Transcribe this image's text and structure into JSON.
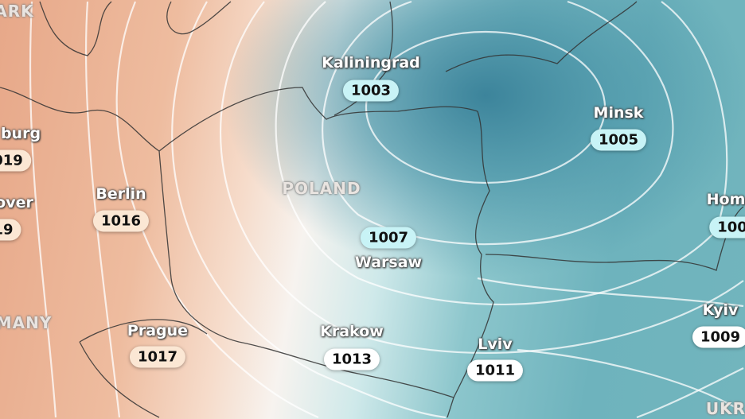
{
  "countries": {
    "denmark": "ARK",
    "germany": "MANY",
    "poland": "POLAND",
    "ukraine": "UKR"
  },
  "cities": [
    {
      "name": "burg",
      "pressure": "019"
    },
    {
      "name": "over",
      "pressure": "19"
    },
    {
      "name": "Berlin",
      "pressure": "1016"
    },
    {
      "name": "Prague",
      "pressure": "1017"
    },
    {
      "name": "Kaliningrad",
      "pressure": "1003"
    },
    {
      "name": "Minsk",
      "pressure": "1005"
    },
    {
      "name": "Warsaw",
      "pressure": "1007"
    },
    {
      "name": "Krakow",
      "pressure": "1013"
    },
    {
      "name": "Lviv",
      "pressure": "1011"
    },
    {
      "name": "Hom",
      "pressure": "100"
    },
    {
      "name": "Kyiv",
      "pressure": "1009"
    }
  ],
  "colors": {
    "high_pressure": "#e7a889",
    "low_pressure": "#3f8aa0"
  }
}
